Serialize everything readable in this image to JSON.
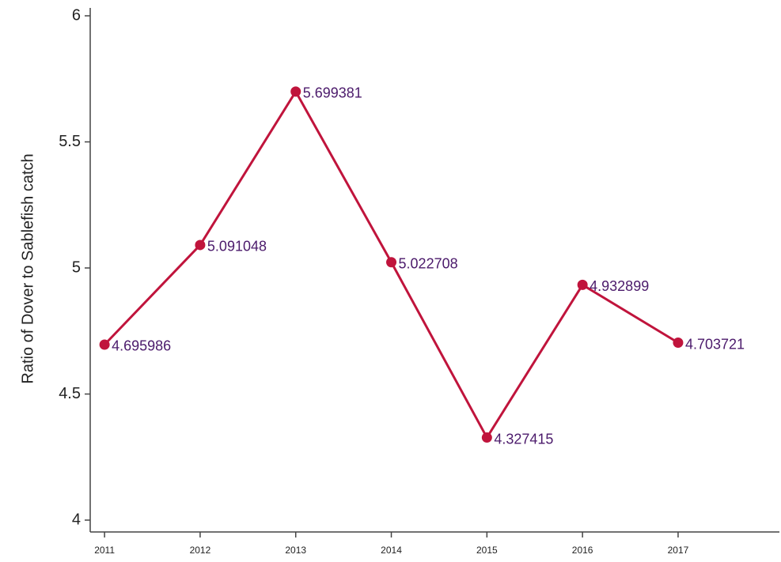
{
  "chart_data": {
    "type": "line",
    "y_label": "Ratio of Dover to Sablefish catch",
    "x": [
      2011,
      2012,
      2013,
      2014,
      2015,
      2016,
      2017
    ],
    "series": [
      {
        "color": "#c0143c",
        "label_color": "#4b1a6b",
        "values": [
          4.695986,
          5.091048,
          5.699381,
          5.022708,
          4.327415,
          4.932899,
          4.703721
        ]
      }
    ],
    "xlim": [
      2010.85,
      2018.06
    ],
    "xticks": [
      2011,
      2012,
      2013,
      2014,
      2015,
      2016,
      2017
    ],
    "ylim": [
      4,
      6
    ],
    "yticks": [
      4,
      4.5,
      5,
      5.5,
      6
    ],
    "value_labels_shown": true,
    "grid": false
  }
}
